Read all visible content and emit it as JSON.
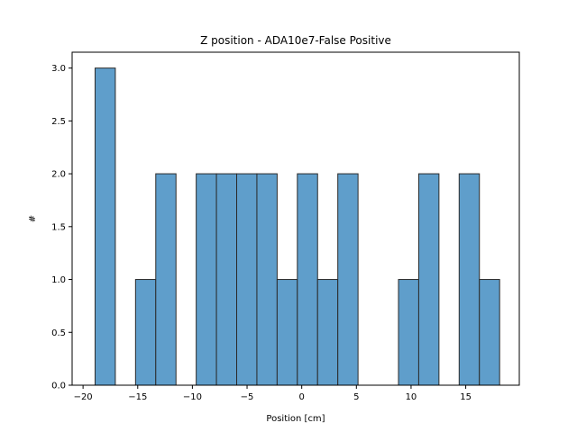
{
  "chart_data": {
    "type": "bar",
    "title": "Z position - ADA10e7-False Positive",
    "xlabel": "Position [cm]",
    "ylabel": "#",
    "xlim": [
      -21.0,
      19.9
    ],
    "ylim": [
      0,
      3.15
    ],
    "xticks": [
      -20,
      -15,
      -10,
      -5,
      0,
      5,
      10,
      15
    ],
    "xtick_labels": [
      "−20",
      "−15",
      "−10",
      "−5",
      "0",
      "5",
      "10",
      "15"
    ],
    "yticks": [
      0,
      0.5,
      1.0,
      1.5,
      2.0,
      2.5,
      3.0
    ],
    "ytick_labels": [
      "0.0",
      "0.5",
      "1.0",
      "1.5",
      "2.0",
      "2.5",
      "3.0"
    ],
    "grid": false,
    "bar_color": "#5f9ecb",
    "edge_color": "#2b2b2b",
    "bins": [
      {
        "x0": -18.9,
        "x1": -17.05,
        "value": 3
      },
      {
        "x0": -17.05,
        "x1": -15.2,
        "value": 0
      },
      {
        "x0": -15.2,
        "x1": -13.35,
        "value": 1
      },
      {
        "x0": -13.35,
        "x1": -11.5,
        "value": 2
      },
      {
        "x0": -11.5,
        "x1": -9.65,
        "value": 0
      },
      {
        "x0": -9.65,
        "x1": -7.8,
        "value": 2
      },
      {
        "x0": -7.8,
        "x1": -5.95,
        "value": 2
      },
      {
        "x0": -5.95,
        "x1": -4.1,
        "value": 2
      },
      {
        "x0": -4.1,
        "x1": -2.25,
        "value": 2
      },
      {
        "x0": -2.25,
        "x1": -0.4,
        "value": 1
      },
      {
        "x0": -0.4,
        "x1": 1.45,
        "value": 2
      },
      {
        "x0": 1.45,
        "x1": 3.3,
        "value": 1
      },
      {
        "x0": 3.3,
        "x1": 5.15,
        "value": 2
      },
      {
        "x0": 5.15,
        "x1": 7.0,
        "value": 0
      },
      {
        "x0": 7.0,
        "x1": 8.85,
        "value": 0
      },
      {
        "x0": 8.85,
        "x1": 10.7,
        "value": 1
      },
      {
        "x0": 10.7,
        "x1": 12.55,
        "value": 2
      },
      {
        "x0": 12.55,
        "x1": 14.4,
        "value": 0
      },
      {
        "x0": 14.4,
        "x1": 16.25,
        "value": 2
      },
      {
        "x0": 16.25,
        "x1": 18.1,
        "value": 1
      }
    ]
  }
}
